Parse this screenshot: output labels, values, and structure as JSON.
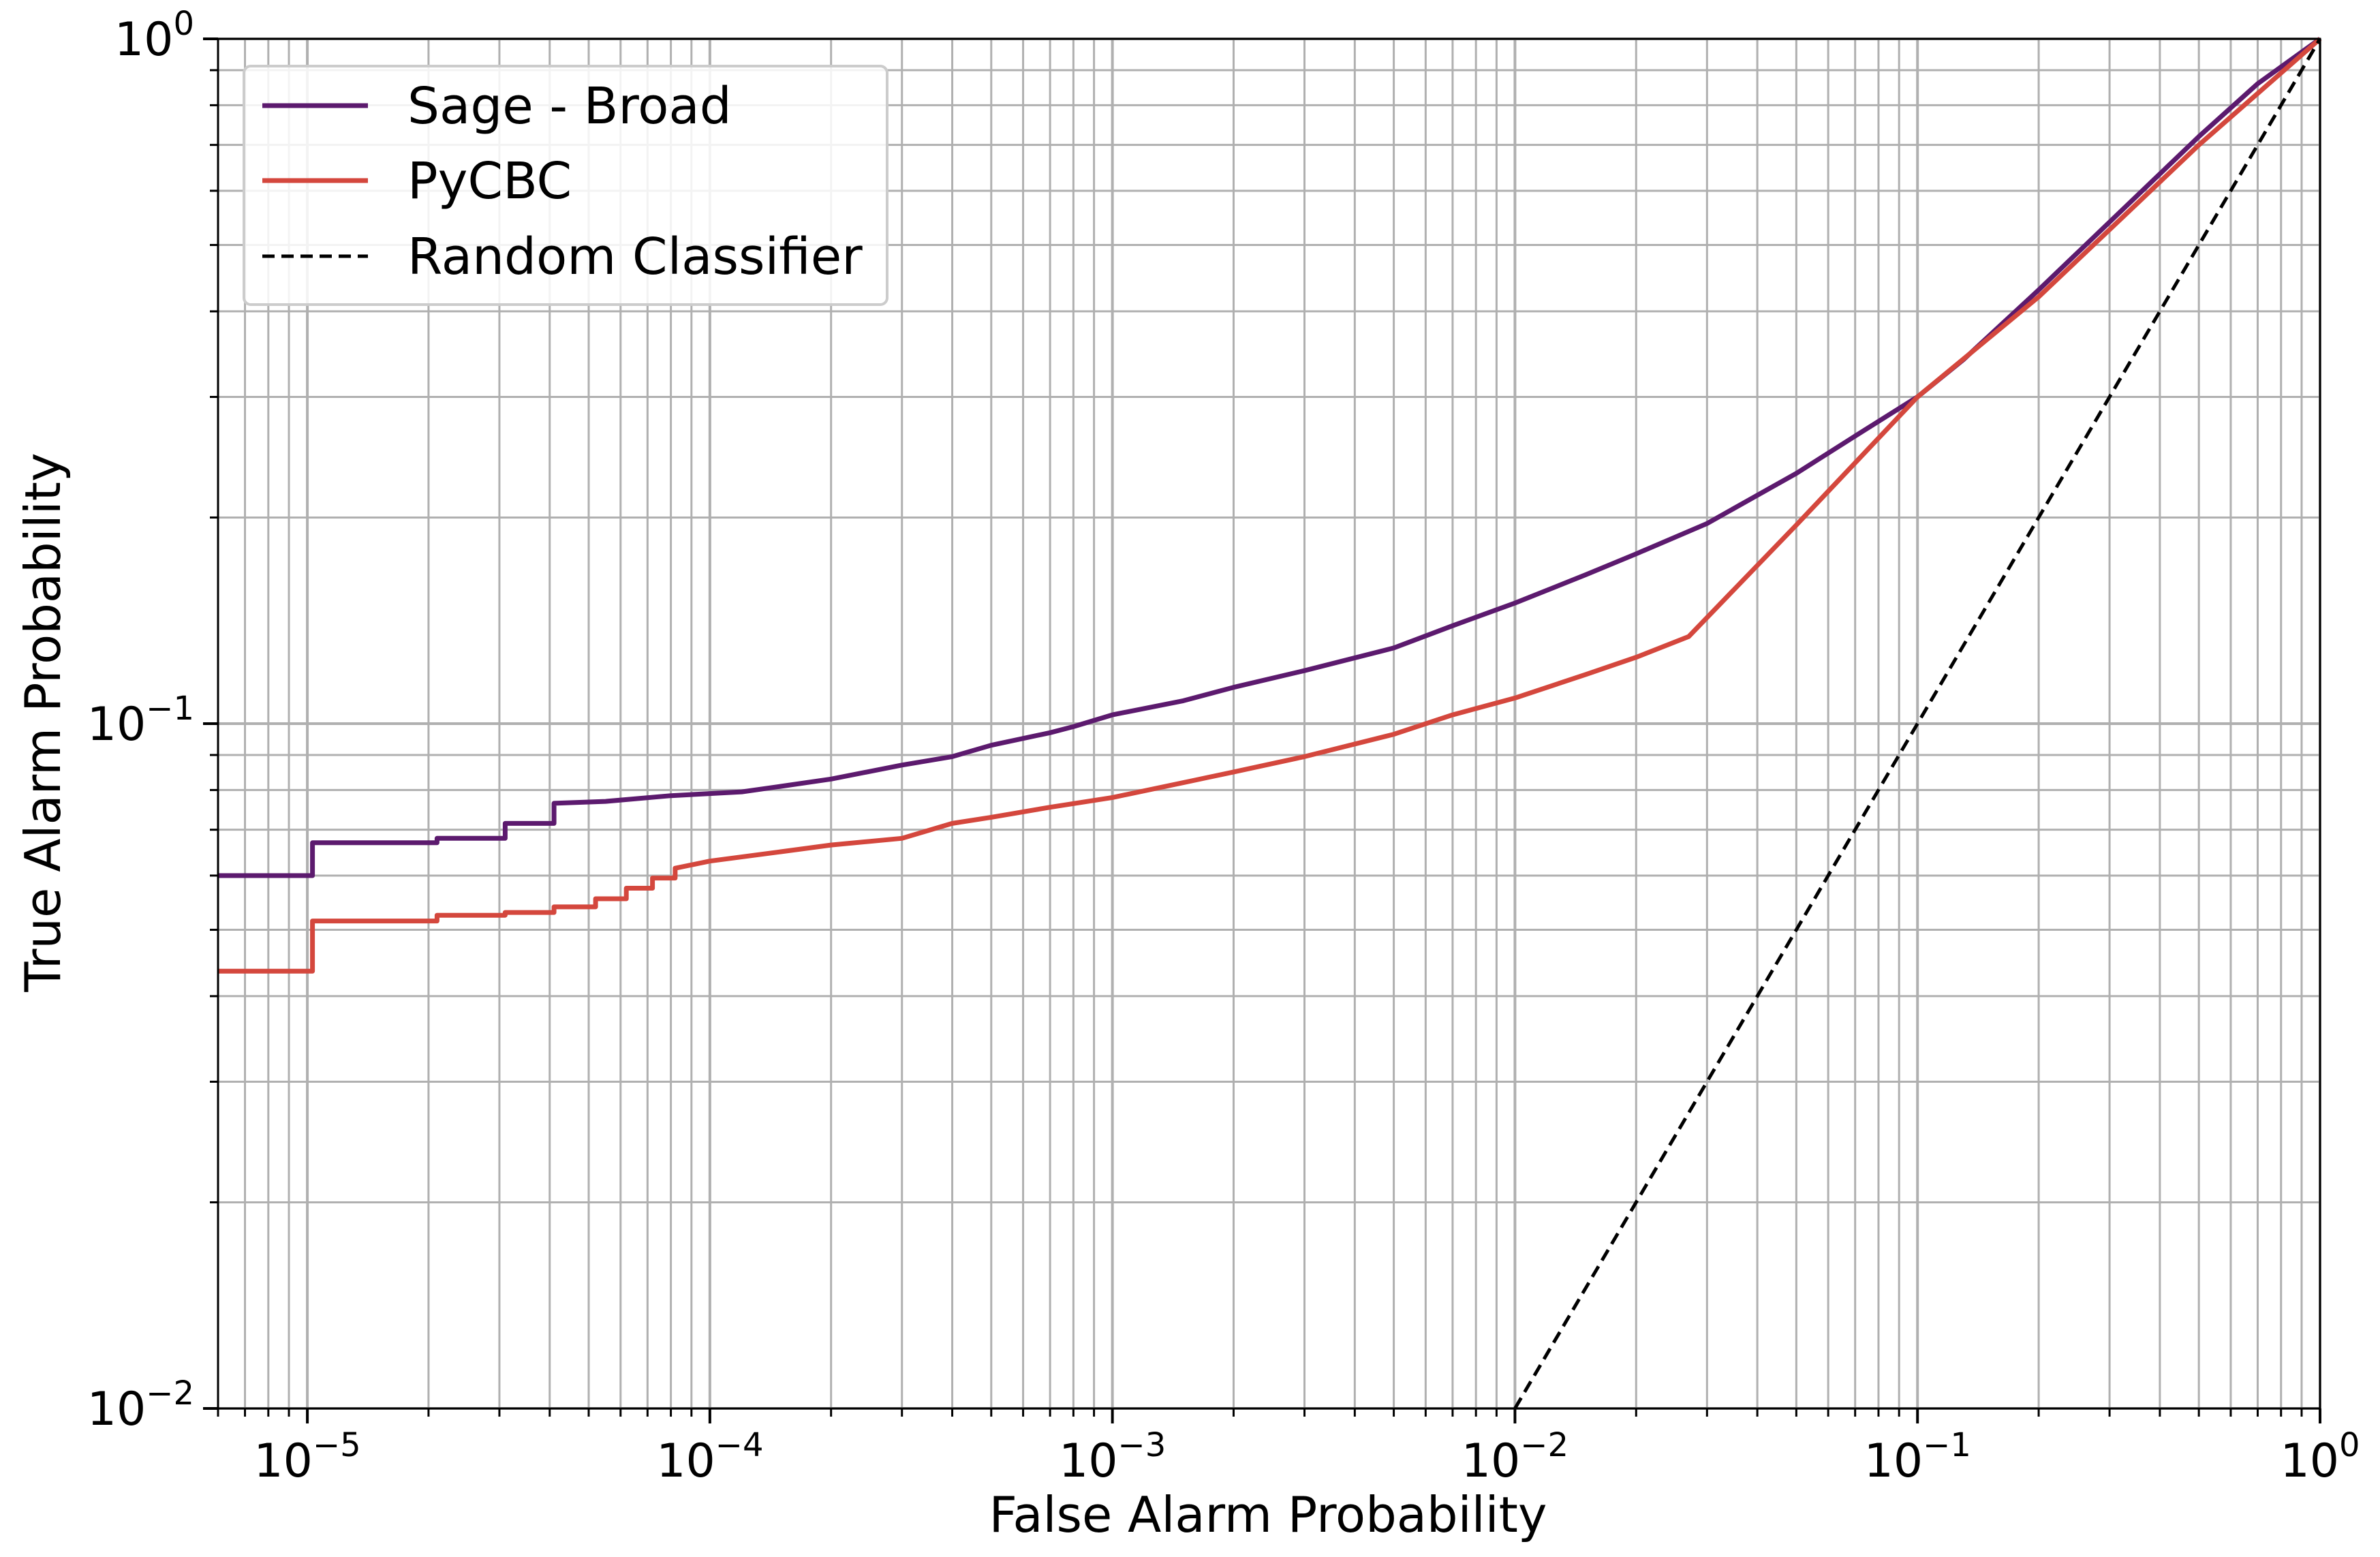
{
  "chart_data": {
    "type": "line",
    "xscale": "log",
    "yscale": "log",
    "xlim": [
      6e-06,
      1
    ],
    "ylim": [
      0.01,
      1
    ],
    "xlabel": "False Alarm Probability",
    "ylabel": "True Alarm Probability",
    "grid": "major and minor",
    "legend_position": "top-left",
    "x_ticks": [
      {
        "base": "10",
        "exp": "−5",
        "value": 1e-05
      },
      {
        "base": "10",
        "exp": "−4",
        "value": 0.0001
      },
      {
        "base": "10",
        "exp": "−3",
        "value": 0.001
      },
      {
        "base": "10",
        "exp": "−2",
        "value": 0.01
      },
      {
        "base": "10",
        "exp": "−1",
        "value": 0.1
      },
      {
        "base": "10",
        "exp": "0",
        "value": 1
      }
    ],
    "y_ticks": [
      {
        "base": "10",
        "exp": "−2",
        "value": 0.01
      },
      {
        "base": "10",
        "exp": "−1",
        "value": 0.1
      },
      {
        "base": "10",
        "exp": "0",
        "value": 1
      }
    ],
    "series": [
      {
        "name": "Sage - Broad",
        "color": "#5c1a6e",
        "style": "solid",
        "points": [
          [
            6e-06,
            0.06
          ],
          [
            1.03e-05,
            0.06
          ],
          [
            1.03e-05,
            0.067
          ],
          [
            2.1e-05,
            0.067
          ],
          [
            2.1e-05,
            0.068
          ],
          [
            3.1e-05,
            0.068
          ],
          [
            3.1e-05,
            0.0715
          ],
          [
            4.1e-05,
            0.0715
          ],
          [
            4.1e-05,
            0.0765
          ],
          [
            5.5e-05,
            0.077
          ],
          [
            8e-05,
            0.0785
          ],
          [
            0.00012,
            0.0795
          ],
          [
            0.00015,
            0.081
          ],
          [
            0.0002,
            0.083
          ],
          [
            0.0003,
            0.087
          ],
          [
            0.0004,
            0.0895
          ],
          [
            0.0005,
            0.093
          ],
          [
            0.0007,
            0.097
          ],
          [
            0.0008,
            0.099
          ],
          [
            0.001,
            0.103
          ],
          [
            0.0015,
            0.108
          ],
          [
            0.002,
            0.113
          ],
          [
            0.003,
            0.1195
          ],
          [
            0.005,
            0.129
          ],
          [
            0.007,
            0.139
          ],
          [
            0.01,
            0.15
          ],
          [
            0.015,
            0.165
          ],
          [
            0.02,
            0.177
          ],
          [
            0.03,
            0.196
          ],
          [
            0.05,
            0.232
          ],
          [
            0.07,
            0.263
          ],
          [
            0.1,
            0.3
          ],
          [
            0.13,
            0.34
          ],
          [
            0.2,
            0.43
          ],
          [
            0.3,
            0.54
          ],
          [
            0.5,
            0.72
          ],
          [
            0.7,
            0.86
          ],
          [
            1,
            1.0
          ]
        ]
      },
      {
        "name": "PyCBC",
        "color": "#d4473d",
        "style": "solid",
        "points": [
          [
            6e-06,
            0.0435
          ],
          [
            1.03e-05,
            0.0435
          ],
          [
            1.03e-05,
            0.0515
          ],
          [
            2.1e-05,
            0.0515
          ],
          [
            2.1e-05,
            0.0525
          ],
          [
            3.1e-05,
            0.0525
          ],
          [
            3.1e-05,
            0.053
          ],
          [
            4.1e-05,
            0.053
          ],
          [
            4.1e-05,
            0.054
          ],
          [
            5.2e-05,
            0.054
          ],
          [
            5.2e-05,
            0.0555
          ],
          [
            6.2e-05,
            0.0555
          ],
          [
            6.2e-05,
            0.0575
          ],
          [
            7.2e-05,
            0.0575
          ],
          [
            7.2e-05,
            0.0595
          ],
          [
            8.2e-05,
            0.0595
          ],
          [
            8.2e-05,
            0.0615
          ],
          [
            0.0001,
            0.063
          ],
          [
            0.00015,
            0.065
          ],
          [
            0.0002,
            0.0665
          ],
          [
            0.0003,
            0.068
          ],
          [
            0.0004,
            0.0715
          ],
          [
            0.0005,
            0.073
          ],
          [
            0.0007,
            0.0755
          ],
          [
            0.001,
            0.078
          ],
          [
            0.0015,
            0.082
          ],
          [
            0.002,
            0.085
          ],
          [
            0.003,
            0.0895
          ],
          [
            0.005,
            0.0965
          ],
          [
            0.007,
            0.103
          ],
          [
            0.01,
            0.109
          ],
          [
            0.015,
            0.118
          ],
          [
            0.02,
            0.125
          ],
          [
            0.027,
            0.134
          ],
          [
            0.05,
            0.195
          ],
          [
            0.1,
            0.3
          ],
          [
            0.2,
            0.42
          ],
          [
            0.5,
            0.7
          ],
          [
            1,
            1.0
          ]
        ]
      },
      {
        "name": "Random Classifier",
        "color": "#000000",
        "style": "dashed",
        "points": [
          [
            0.01,
            0.01
          ],
          [
            1,
            1
          ]
        ]
      }
    ]
  }
}
